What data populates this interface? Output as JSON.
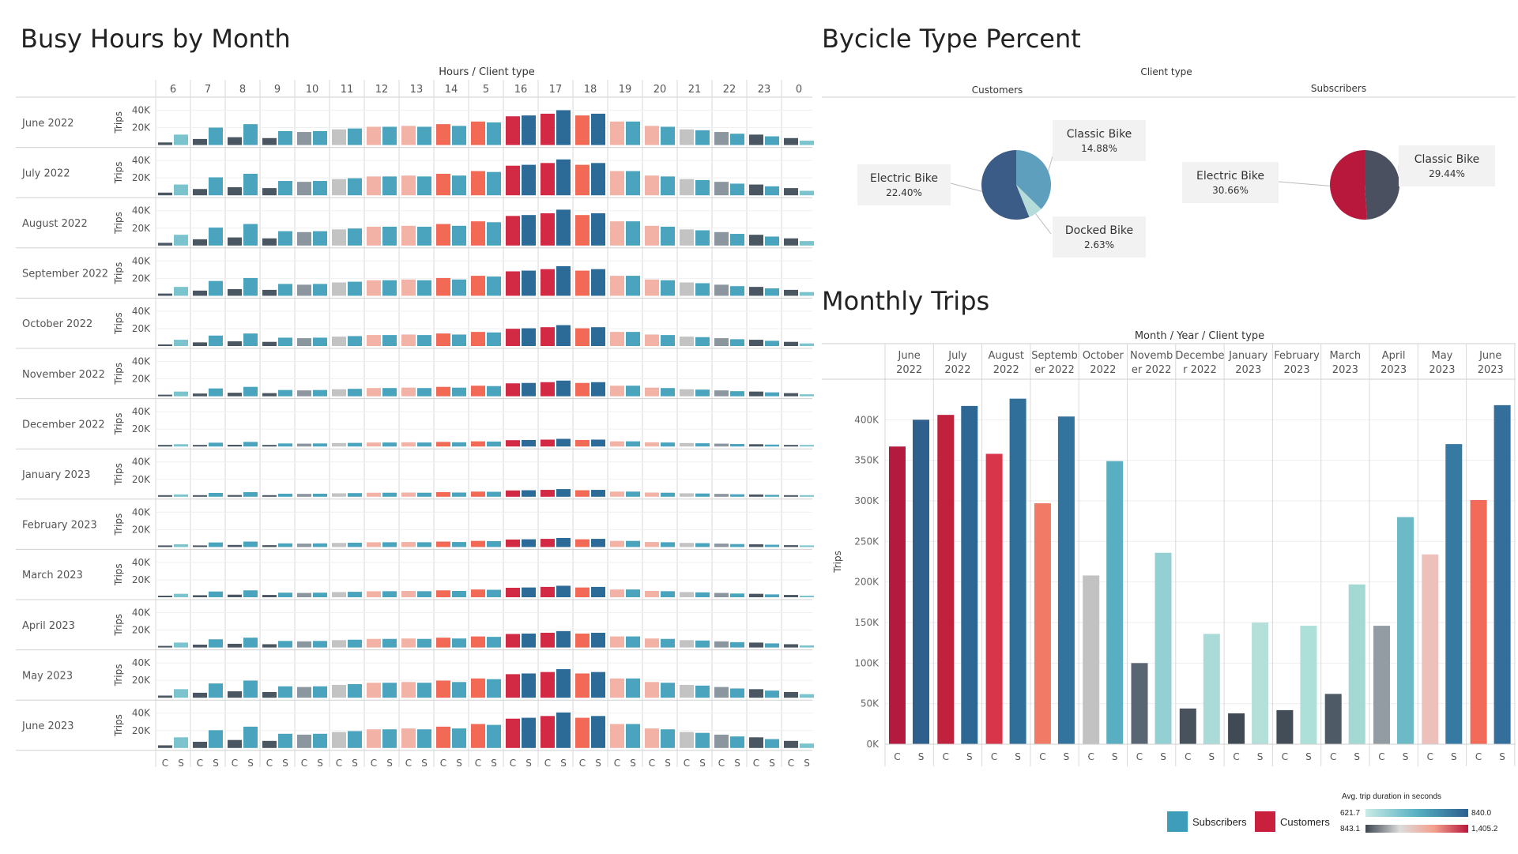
{
  "titles": {
    "busy": "Busy Hours by Month",
    "bike": "Bycicle Type Percent",
    "monthly": "Monthly Trips"
  },
  "legend": {
    "subscribers": "Subscribers",
    "customers": "Customers",
    "duration_title": "Avg. trip duration in seconds",
    "sub_min": "621.7",
    "sub_max": "840.0",
    "cust_min": "843.1",
    "cust_max": "1,405.2",
    "colors": {
      "subscriber": "#3e9dbb",
      "customer": "#c8203d"
    }
  },
  "chart_data": [
    {
      "type": "bar",
      "name_id": "busy-hours",
      "title": "Busy Hours by Month",
      "header": "Hours / Client type",
      "ylabel": "Trips",
      "yticks": [
        "20K",
        "40K"
      ],
      "ylim": [
        0,
        45000
      ],
      "hours": [
        "6",
        "7",
        "8",
        "9",
        "10",
        "11",
        "12",
        "13",
        "14",
        "5",
        "16",
        "17",
        "18",
        "19",
        "20",
        "21",
        "22",
        "23",
        "0"
      ],
      "client_labels": [
        "C",
        "S"
      ],
      "months": [
        "June 2022",
        "July 2022",
        "August 2022",
        "September 2022",
        "October 2022",
        "November 2022",
        "December 2022",
        "January 2023",
        "February 2023",
        "March 2023",
        "April 2023",
        "May 2023",
        "June 2023"
      ],
      "scale": [
        1.0,
        1.03,
        1.03,
        0.85,
        0.6,
        0.45,
        0.22,
        0.22,
        0.26,
        0.33,
        0.47,
        0.82,
        1.02
      ],
      "base_customers": [
        3000,
        7000,
        9000,
        8000,
        15000,
        18000,
        21000,
        22000,
        24000,
        27000,
        33000,
        36000,
        34000,
        27000,
        22000,
        18000,
        15000,
        12000,
        8000
      ],
      "base_subscribers": [
        12000,
        20000,
        24000,
        16000,
        16000,
        19000,
        21000,
        21000,
        22000,
        26000,
        34000,
        40000,
        36000,
        27000,
        21000,
        17000,
        13000,
        10000,
        5000
      ],
      "customer_color_rank": [
        0,
        0,
        0,
        0,
        1,
        2,
        3,
        3,
        4,
        4,
        5,
        5,
        4,
        3,
        3,
        2,
        1,
        0,
        0
      ],
      "subscriber_color_rank": [
        0,
        1,
        1,
        1,
        1,
        1,
        1,
        1,
        1,
        1,
        2,
        2,
        2,
        1,
        1,
        1,
        1,
        1,
        0
      ]
    },
    {
      "type": "pie",
      "name_id": "bike-type",
      "title": "Bycicle Type Percent",
      "header": "Client type",
      "groups": [
        {
          "name": "Customers",
          "slices": [
            {
              "label": "Classic Bike",
              "pct_text": "14.88%",
              "value": 14.88,
              "color": "#5f9fbe"
            },
            {
              "label": "Docked Bike",
              "pct_text": "2.63%",
              "value": 2.63,
              "color": "#b5dcd8"
            },
            {
              "label": "Electric Bike",
              "pct_text": "22.40%",
              "value": 22.4,
              "color": "#3b5c86"
            }
          ]
        },
        {
          "name": "Subscribers",
          "slices": [
            {
              "label": "Classic Bike",
              "pct_text": "29.44%",
              "value": 29.44,
              "color": "#4a5060"
            },
            {
              "label": "Electric Bike",
              "pct_text": "30.66%",
              "value": 30.66,
              "color": "#b8183c"
            }
          ]
        }
      ]
    },
    {
      "type": "bar",
      "name_id": "monthly-trips",
      "title": "Monthly Trips",
      "header": "Month / Year / Client type",
      "ylabel": "Trips",
      "yticks": [
        "0K",
        "50K",
        "100K",
        "150K",
        "200K",
        "250K",
        "300K",
        "350K",
        "400K"
      ],
      "ylim": [
        0,
        450000
      ],
      "client_labels": [
        "C",
        "S"
      ],
      "months": [
        {
          "line1": "June",
          "line2": "2022",
          "c": 367000,
          "s": 400000,
          "c_color": "#b31a3e",
          "s_color": "#2e5f8d"
        },
        {
          "line1": "July",
          "line2": "2022",
          "c": 406000,
          "s": 417000,
          "c_color": "#c0213d",
          "s_color": "#2d6895"
        },
        {
          "line1": "August",
          "line2": "2022",
          "c": 358000,
          "s": 426000,
          "c_color": "#d8344a",
          "s_color": "#2f6f9a"
        },
        {
          "line1": "Septemb",
          "line2": "er 2022",
          "c": 297000,
          "s": 404000,
          "c_color": "#f07a66",
          "s_color": "#33749e"
        },
        {
          "line1": "October",
          "line2": "2022",
          "c": 208000,
          "s": 349000,
          "c_color": "#c2c2c2",
          "s_color": "#5aaec1"
        },
        {
          "line1": "Novemb",
          "line2": "er 2022",
          "c": 100000,
          "s": 236000,
          "c_color": "#586572",
          "s_color": "#94d0d3"
        },
        {
          "line1": "Decembe",
          "line2": "r 2022",
          "c": 44000,
          "s": 136000,
          "c_color": "#47525d",
          "s_color": "#aadbd8"
        },
        {
          "line1": "January",
          "line2": "2023",
          "c": 38000,
          "s": 150000,
          "c_color": "#404a55",
          "s_color": "#b5e0da"
        },
        {
          "line1": "February",
          "line2": "2023",
          "c": 42000,
          "s": 146000,
          "c_color": "#434d58",
          "s_color": "#ade0d8"
        },
        {
          "line1": "March",
          "line2": "2023",
          "c": 62000,
          "s": 197000,
          "c_color": "#4e5a66",
          "s_color": "#a3d8d3"
        },
        {
          "line1": "April",
          "line2": "2023",
          "c": 146000,
          "s": 280000,
          "c_color": "#939ca3",
          "s_color": "#6cbac5"
        },
        {
          "line1": "May",
          "line2": "2023",
          "c": 234000,
          "s": 370000,
          "c_color": "#eec0bc",
          "s_color": "#3679a2"
        },
        {
          "line1": "June",
          "line2": "2023",
          "c": 301000,
          "s": 418000,
          "c_color": "#f26b58",
          "s_color": "#336f9a"
        }
      ]
    }
  ]
}
